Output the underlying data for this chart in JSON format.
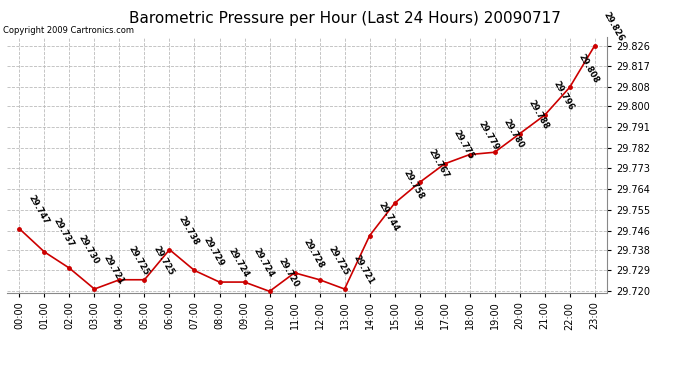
{
  "title": "Barometric Pressure per Hour (Last 24 Hours) 20090717",
  "copyright": "Copyright 2009 Cartronics.com",
  "hours": [
    "00:00",
    "01:00",
    "02:00",
    "03:00",
    "04:00",
    "05:00",
    "06:00",
    "07:00",
    "08:00",
    "09:00",
    "10:00",
    "11:00",
    "12:00",
    "13:00",
    "14:00",
    "15:00",
    "16:00",
    "17:00",
    "18:00",
    "19:00",
    "20:00",
    "21:00",
    "22:00",
    "23:00"
  ],
  "values": [
    29.747,
    29.737,
    29.73,
    29.721,
    29.725,
    29.725,
    29.738,
    29.729,
    29.724,
    29.724,
    29.72,
    29.728,
    29.725,
    29.721,
    29.744,
    29.758,
    29.767,
    29.775,
    29.779,
    29.78,
    29.788,
    29.796,
    29.808,
    29.826
  ],
  "ylim_min": 29.7195,
  "ylim_max": 29.8295,
  "yticks": [
    29.72,
    29.729,
    29.738,
    29.746,
    29.755,
    29.764,
    29.773,
    29.782,
    29.791,
    29.8,
    29.808,
    29.817,
    29.826
  ],
  "line_color": "#cc0000",
  "marker_color": "#cc0000",
  "bg_color": "#ffffff",
  "grid_color": "#bbbbbb",
  "title_fontsize": 11,
  "copyright_fontsize": 6,
  "label_fontsize": 6,
  "tick_fontsize": 7,
  "ytick_fontsize": 7
}
